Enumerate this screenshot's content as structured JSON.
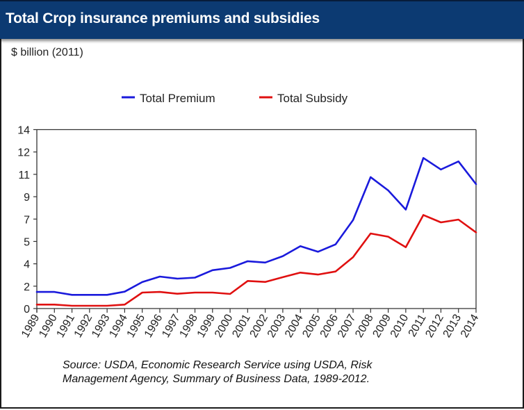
{
  "header": {
    "title": "Total Crop insurance premiums and subsidies"
  },
  "unit_label": "$ billion (2011)",
  "source": {
    "line1": "Source: USDA, Economic Research Service using USDA, Risk",
    "line2": "Management Agency, Summary of Business Data, 1989-2012."
  },
  "colors": {
    "header": "#0c3a72",
    "premium": "#1a1adc",
    "subsidy": "#e01010",
    "axis": "#333333"
  },
  "chart_data": {
    "type": "line",
    "title": "Total Crop insurance premiums and subsidies",
    "xlabel": "",
    "ylabel": "$ billion (2011)",
    "ylim": [
      0,
      14
    ],
    "yticks": [
      0,
      1.75,
      3.5,
      5.25,
      7,
      8.75,
      10.5,
      12.25,
      14
    ],
    "ytick_labels": [
      "0",
      "2",
      "4",
      "5",
      "7",
      "9",
      "11",
      "12",
      "14"
    ],
    "grid": false,
    "legend_position": "top-center",
    "x": [
      "1989",
      "1990",
      "1991",
      "1992",
      "1993",
      "1994",
      "1995",
      "1996",
      "1997",
      "1998",
      "1999",
      "2000",
      "2001",
      "2002",
      "2003",
      "2004",
      "2005",
      "2006",
      "2007",
      "2008",
      "2009",
      "2010",
      "2011",
      "2012",
      "2013",
      "2014"
    ],
    "series": [
      {
        "name": "Total Premium",
        "color": "#1a1adc",
        "values": [
          1.3,
          1.3,
          1.07,
          1.07,
          1.07,
          1.32,
          2.07,
          2.5,
          2.34,
          2.42,
          3.0,
          3.18,
          3.7,
          3.6,
          4.1,
          4.88,
          4.44,
          5.02,
          6.92,
          10.28,
          9.24,
          7.74,
          11.78,
          10.88,
          11.51,
          9.73
        ]
      },
      {
        "name": "Total Subsidy",
        "color": "#e01010",
        "values": [
          0.31,
          0.31,
          0.22,
          0.22,
          0.22,
          0.31,
          1.25,
          1.3,
          1.16,
          1.25,
          1.25,
          1.14,
          2.16,
          2.08,
          2.45,
          2.81,
          2.66,
          2.9,
          4.02,
          5.87,
          5.62,
          4.8,
          7.32,
          6.74,
          6.96,
          5.96
        ]
      }
    ]
  }
}
